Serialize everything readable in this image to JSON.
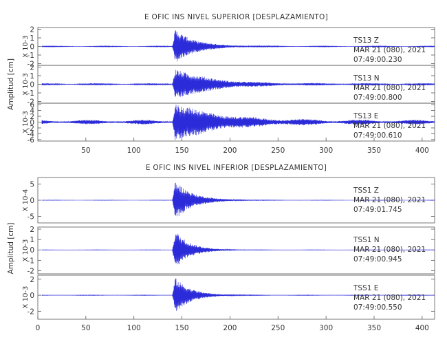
{
  "chart_data": [
    {
      "type": "line",
      "title": "E OFIC INS NIVEL SUPERIOR [DESPLAZAMIENTO]",
      "ylabel": "Amplitud [cm]",
      "xlim": [
        0,
        413
      ],
      "xticks": [
        "50",
        "100",
        "150",
        "200",
        "250",
        "300",
        "350",
        "400"
      ],
      "xtick_values": [
        50,
        100,
        150,
        200,
        250,
        300,
        350,
        400
      ],
      "onset_x": 140,
      "grid": false,
      "line_color": "#2b2bd9",
      "series": [
        {
          "name": "TS13 Z",
          "station": "TS13",
          "component": "Z",
          "date": "MAR 21 (080), 2021",
          "time": "07:49:00.230",
          "scale_label": "X 10-3",
          "ylim": [
            -2.2,
            2.2
          ],
          "yticks": [
            "2",
            "1",
            "0",
            "-1",
            "-2"
          ],
          "ytick_values": [
            2,
            1,
            0,
            -1,
            -2
          ],
          "peak_amplitude": 2.0,
          "background_amplitude": 0.05,
          "decay_seconds": 20
        },
        {
          "name": "TS13 N",
          "station": "TS13",
          "component": "N",
          "date": "MAR 21 (080), 2021",
          "time": "07:49:00.800",
          "scale_label": "X 10-3",
          "ylim": [
            -2.2,
            2.2
          ],
          "yticks": [
            "2",
            "1",
            "0",
            "-1",
            "-2"
          ],
          "ytick_values": [
            2,
            1,
            0,
            -1,
            -2
          ],
          "peak_amplitude": 1.8,
          "background_amplitude": 0.12,
          "decay_seconds": 35
        },
        {
          "name": "TS13 E",
          "station": "TS13",
          "component": "E",
          "date": "MAR 21 (080), 2021",
          "time": "07:49:00.610",
          "scale_label": "X 10-3",
          "ylim": [
            -6.5,
            6.5
          ],
          "yticks": [
            "6",
            "4",
            "2",
            "0",
            "-2",
            "-4",
            "-6"
          ],
          "ytick_values": [
            6,
            4,
            2,
            0,
            -2,
            -4,
            -6
          ],
          "peak_amplitude": 6.0,
          "background_amplitude": 0.8,
          "decay_seconds": 45
        }
      ]
    },
    {
      "type": "line",
      "title": "E OFIC INS NIVEL INFERIOR [DESPLAZAMIENTO]",
      "ylabel": "Amplitud [cm]",
      "xlim": [
        0,
        413
      ],
      "xticks": [
        "0",
        "50",
        "100",
        "150",
        "200",
        "250",
        "300",
        "350",
        "400"
      ],
      "xtick_values": [
        0,
        50,
        100,
        150,
        200,
        250,
        300,
        350,
        400
      ],
      "onset_x": 140,
      "grid": false,
      "line_color": "#2b2bd9",
      "series": [
        {
          "name": "TSS1 Z",
          "station": "TSS1",
          "component": "Z",
          "date": "MAR 21 (080), 2021",
          "time": "07:49:01.745",
          "scale_label": "X 10-4",
          "ylim": [
            -7,
            7
          ],
          "yticks": [
            "5",
            "0",
            "-5"
          ],
          "ytick_values": [
            5,
            0,
            -5
          ],
          "peak_amplitude": 6.0,
          "background_amplitude": 0.05,
          "decay_seconds": 18
        },
        {
          "name": "TSS1 N",
          "station": "TSS1",
          "component": "N",
          "date": "MAR 21 (080), 2021",
          "time": "07:49:00.945",
          "scale_label": "X 10-3",
          "ylim": [
            -2.3,
            2.2
          ],
          "yticks": [
            "2",
            "1",
            "0",
            "-1",
            "-2"
          ],
          "ytick_values": [
            2,
            1,
            0,
            -1,
            -2
          ],
          "peak_amplitude": 1.9,
          "background_amplitude": 0.02,
          "decay_seconds": 15
        },
        {
          "name": "TSS1 E",
          "station": "TSS1",
          "component": "E",
          "date": "MAR 21 (080), 2021",
          "time": "07:49:00.550",
          "scale_label": "X 10-3",
          "ylim": [
            -3,
            2.5
          ],
          "yticks": [
            "2",
            "0",
            "-2"
          ],
          "ytick_values": [
            2,
            0,
            -2
          ],
          "peak_amplitude": 2.2,
          "background_amplitude": 0.03,
          "decay_seconds": 16
        }
      ]
    }
  ]
}
